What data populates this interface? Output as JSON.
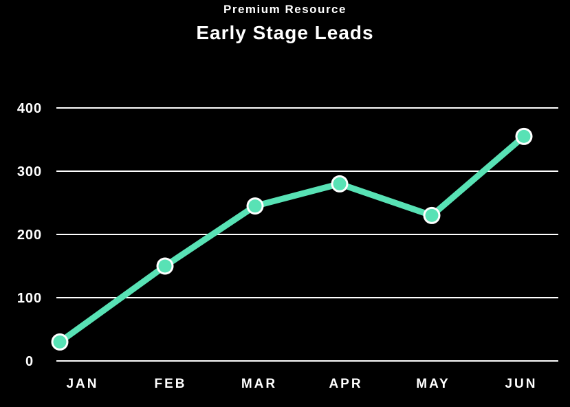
{
  "page": {
    "background": "#000000",
    "text_color": "#ffffff"
  },
  "header": {
    "eyebrow": "Premium Resource",
    "title": "Early Stage Leads"
  },
  "chart_data": {
    "type": "line",
    "title": "Early Stage Leads",
    "categories": [
      "JAN",
      "FEB",
      "MAR",
      "APR",
      "MAY",
      "JUN"
    ],
    "series": [
      {
        "name": "Early Stage Leads",
        "values": [
          30,
          150,
          245,
          280,
          230,
          355
        ]
      }
    ],
    "xlabel": "",
    "ylabel": "",
    "ylim": [
      0,
      400
    ],
    "yticks": [
      0,
      100,
      200,
      300,
      400
    ],
    "grid": "horizontal",
    "legend": "none",
    "line_color": "#58E2B5",
    "marker_fill": "#58E2B5",
    "marker_ring_color": "#FFFFFF",
    "gridline_color": "#FFFFFF",
    "tick_label_color": "#FFFFFF"
  }
}
